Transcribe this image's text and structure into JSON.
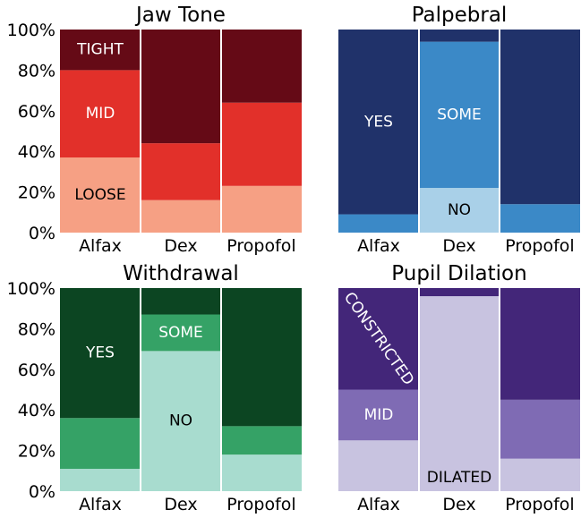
{
  "y_ticks": [
    "100%",
    "80%",
    "60%",
    "40%",
    "20%",
    "0%"
  ],
  "chart_data": [
    {
      "type": "bar",
      "stacked": true,
      "title": "Jaw Tone",
      "categories": [
        "Alfax",
        "Dex",
        "Propofol"
      ],
      "ylim": [
        0,
        100
      ],
      "series": [
        {
          "name": "LOOSE",
          "color": "#f6a084",
          "values": [
            37,
            16,
            23
          ]
        },
        {
          "name": "MID",
          "color": "#e2302a",
          "values": [
            43,
            28,
            41
          ]
        },
        {
          "name": "TIGHT",
          "color": "#650a16",
          "values": [
            20,
            56,
            36
          ]
        }
      ]
    },
    {
      "type": "bar",
      "stacked": true,
      "title": "Palpebral",
      "categories": [
        "Alfax",
        "Dex",
        "Propofol"
      ],
      "ylim": [
        0,
        100
      ],
      "series": [
        {
          "name": "NO",
          "color": "#a9d0e8",
          "values": [
            0,
            22,
            0
          ]
        },
        {
          "name": "SOME",
          "color": "#3b89c7",
          "values": [
            9,
            72,
            14
          ]
        },
        {
          "name": "YES",
          "color": "#20326a",
          "values": [
            91,
            6,
            86
          ]
        }
      ]
    },
    {
      "type": "bar",
      "stacked": true,
      "title": "Withdrawal",
      "categories": [
        "Alfax",
        "Dex",
        "Propofol"
      ],
      "ylim": [
        0,
        100
      ],
      "series": [
        {
          "name": "NO",
          "color": "#a8dccf",
          "values": [
            11,
            69,
            18
          ]
        },
        {
          "name": "SOME",
          "color": "#35a266",
          "values": [
            25,
            18,
            14
          ]
        },
        {
          "name": "YES",
          "color": "#0c4522",
          "values": [
            64,
            13,
            68
          ]
        }
      ]
    },
    {
      "type": "bar",
      "stacked": true,
      "title": "Pupil Dilation",
      "categories": [
        "Alfax",
        "Dex",
        "Propofol"
      ],
      "ylim": [
        0,
        100
      ],
      "series": [
        {
          "name": "DILATED",
          "color": "#c8c3e0",
          "values": [
            25,
            96,
            16
          ]
        },
        {
          "name": "MID",
          "color": "#7f6bb4",
          "values": [
            25,
            0,
            29
          ]
        },
        {
          "name": "CONSTRICTED",
          "color": "#432679",
          "values": [
            50,
            4,
            55
          ]
        }
      ]
    }
  ],
  "segment_labels": [
    [
      {
        "series": 0,
        "category": 0,
        "text": "LOOSE",
        "color": "#000000"
      },
      {
        "series": 1,
        "category": 0,
        "text": "MID",
        "color": "#ffffff"
      },
      {
        "series": 2,
        "category": 0,
        "text": "TIGHT",
        "color": "#ffffff"
      }
    ],
    [
      {
        "series": 0,
        "category": 1,
        "text": "NO",
        "color": "#000000"
      },
      {
        "series": 1,
        "category": 1,
        "text": "SOME",
        "color": "#ffffff"
      },
      {
        "series": 2,
        "category": 0,
        "text": "YES",
        "color": "#ffffff"
      }
    ],
    [
      {
        "series": 0,
        "category": 1,
        "text": "NO",
        "color": "#000000"
      },
      {
        "series": 1,
        "category": 1,
        "text": "SOME",
        "color": "#ffffff"
      },
      {
        "series": 2,
        "category": 0,
        "text": "YES",
        "color": "#ffffff"
      }
    ],
    [
      {
        "series": 0,
        "category": 1,
        "text": "DILATED",
        "color": "#000000",
        "anchor": "bottom"
      },
      {
        "series": 1,
        "category": 0,
        "text": "MID",
        "color": "#ffffff"
      },
      {
        "series": 2,
        "category": 0,
        "text": "CONSTRICTED",
        "color": "#ffffff",
        "rotate": 55
      }
    ]
  ]
}
